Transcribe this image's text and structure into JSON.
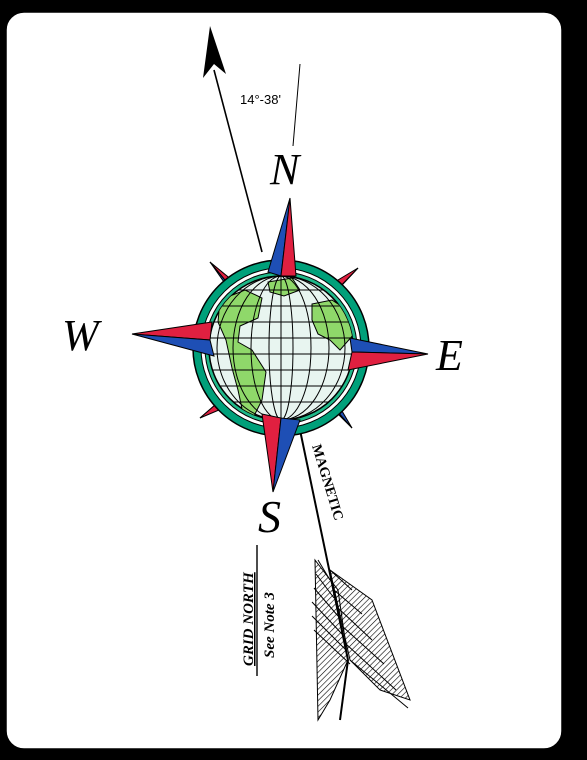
{
  "angle_label": "14°-38'",
  "cardinals": {
    "north": "N",
    "south": "S",
    "east": "E",
    "west": "W"
  },
  "magnetic_label": "MAGNETIC",
  "grid_north": {
    "title": "GRID NORTH",
    "note": "See Note 3"
  },
  "colors": {
    "background": "#000000",
    "card": "#ffffff",
    "line": "#000000",
    "star_red": "#e02040",
    "star_blue": "#1e4fb5",
    "ring_teal": "#00a07a",
    "ocean": "#e8f5f0",
    "land": "#8fd86a"
  }
}
